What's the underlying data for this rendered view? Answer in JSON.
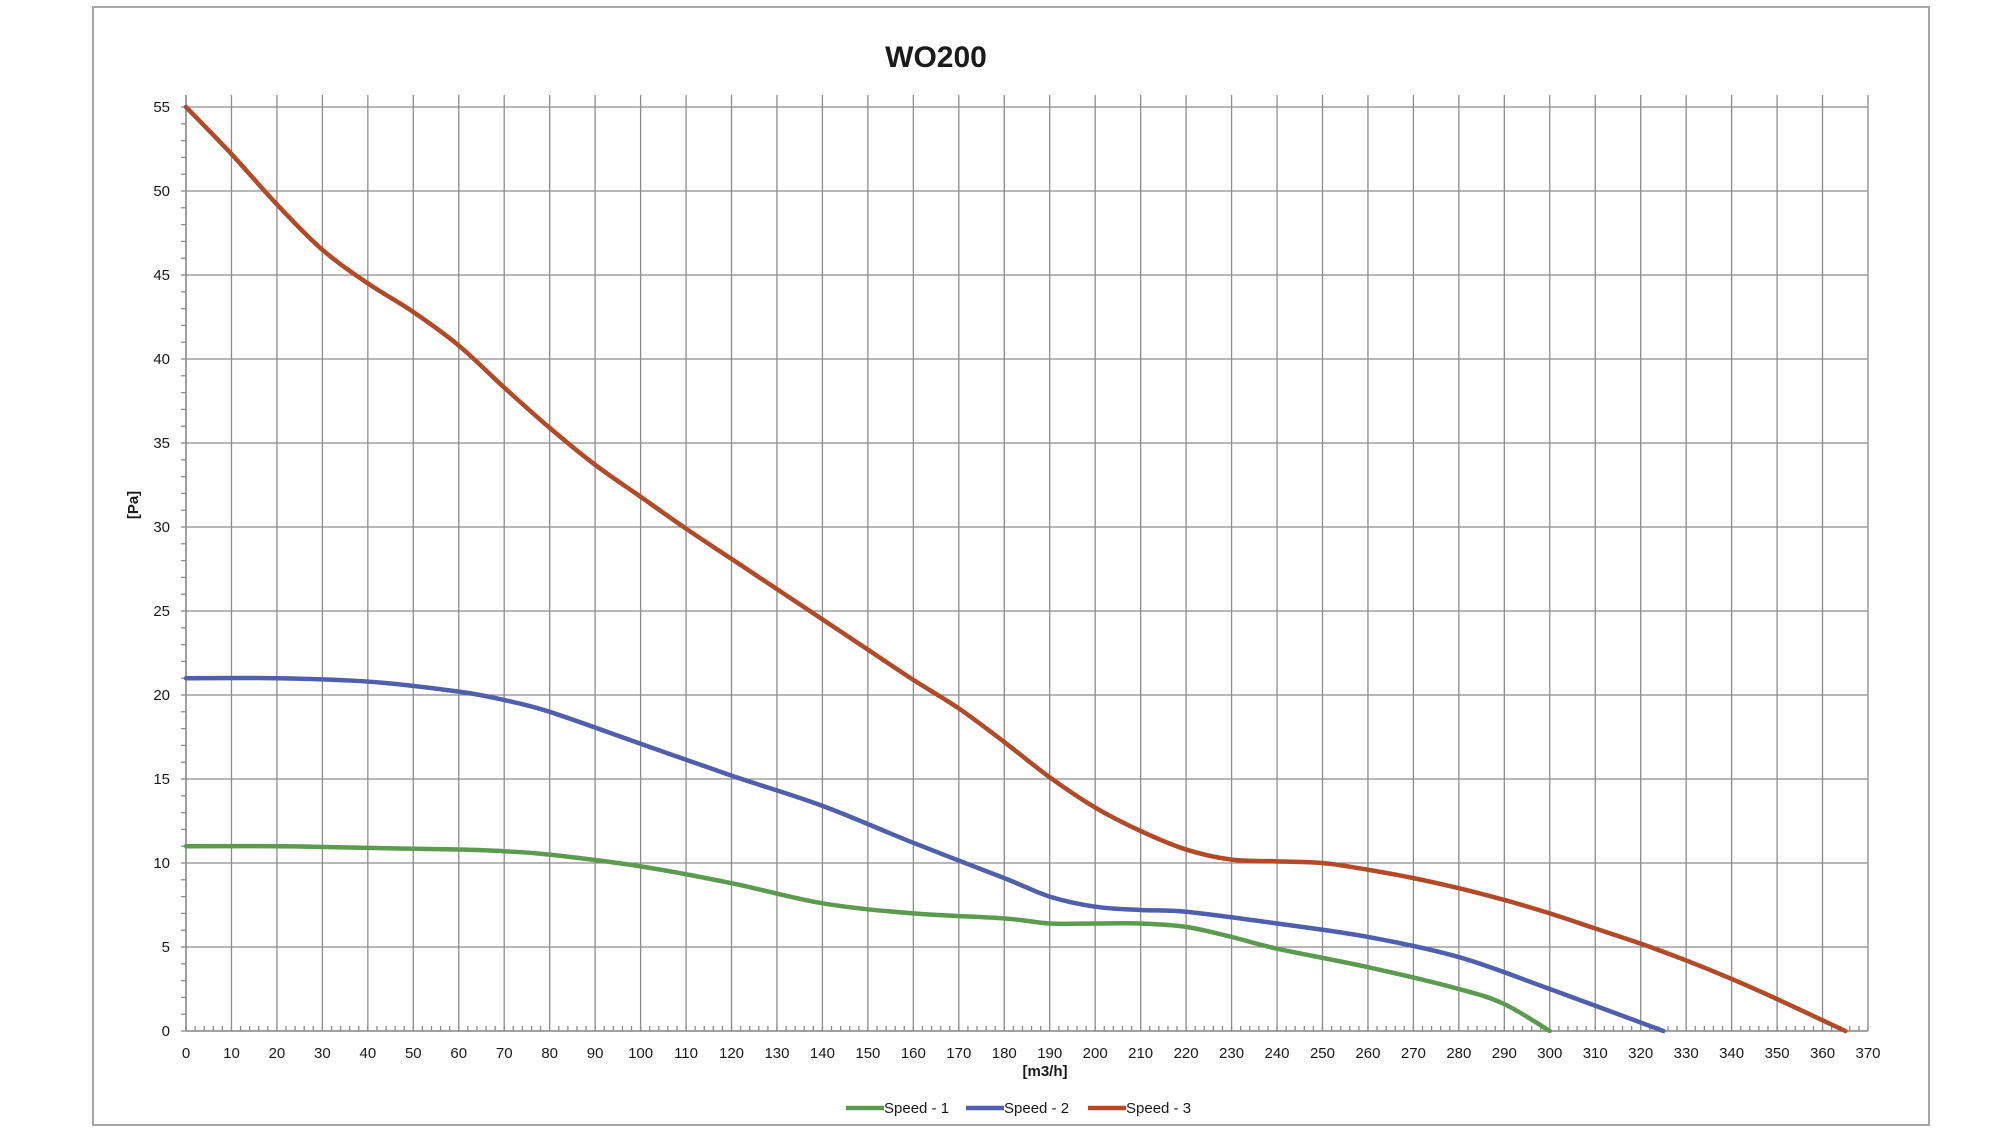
{
  "chart_data": {
    "type": "line",
    "title": "WO200",
    "xlabel": "[m3/h]",
    "ylabel": "[Pa]",
    "xlim": [
      0,
      370
    ],
    "ylim": [
      0,
      55
    ],
    "xticks": [
      0,
      10,
      20,
      30,
      40,
      50,
      60,
      70,
      80,
      90,
      100,
      110,
      120,
      130,
      140,
      150,
      160,
      170,
      180,
      190,
      200,
      210,
      220,
      230,
      240,
      250,
      260,
      270,
      280,
      290,
      300,
      310,
      320,
      330,
      340,
      350,
      360,
      370
    ],
    "yticks": [
      0,
      5,
      10,
      15,
      20,
      25,
      30,
      35,
      40,
      45,
      50,
      55
    ],
    "grid": true,
    "legend_position": "bottom",
    "series": [
      {
        "name": "Speed - 1",
        "color": "#5b9a4f",
        "x": [
          0,
          20,
          40,
          60,
          70,
          80,
          100,
          120,
          140,
          160,
          180,
          190,
          200,
          210,
          220,
          230,
          240,
          260,
          280,
          290,
          300
        ],
        "y": [
          11,
          11,
          10.9,
          10.8,
          10.7,
          10.5,
          9.8,
          8.8,
          7.6,
          7.0,
          6.7,
          6.4,
          6.4,
          6.4,
          6.2,
          5.6,
          4.9,
          3.8,
          2.5,
          1.6,
          0
        ]
      },
      {
        "name": "Speed - 2",
        "color": "#4f5fab",
        "x": [
          0,
          20,
          40,
          60,
          70,
          80,
          100,
          120,
          140,
          160,
          180,
          190,
          200,
          210,
          220,
          240,
          260,
          280,
          300,
          325
        ],
        "y": [
          21,
          21,
          20.8,
          20.2,
          19.7,
          19.0,
          17.1,
          15.2,
          13.4,
          11.2,
          9.1,
          8.0,
          7.4,
          7.2,
          7.1,
          6.4,
          5.6,
          4.4,
          2.5,
          0
        ]
      },
      {
        "name": "Speed - 3",
        "color": "#b34a27",
        "x": [
          0,
          10,
          20,
          30,
          40,
          50,
          60,
          70,
          80,
          90,
          100,
          110,
          120,
          130,
          140,
          150,
          160,
          170,
          180,
          190,
          200,
          210,
          220,
          230,
          240,
          250,
          260,
          270,
          280,
          290,
          300,
          310,
          320,
          330,
          340,
          350,
          365
        ],
        "y": [
          55,
          52.2,
          49.2,
          46.5,
          44.5,
          42.8,
          40.8,
          38.3,
          35.9,
          33.7,
          31.8,
          29.9,
          28.1,
          26.3,
          24.5,
          22.7,
          20.9,
          19.2,
          17.2,
          15.1,
          13.3,
          11.9,
          10.8,
          10.2,
          10.1,
          10.0,
          9.6,
          9.1,
          8.5,
          7.8,
          7.0,
          6.1,
          5.2,
          4.2,
          3.1,
          1.9,
          0
        ]
      }
    ]
  }
}
